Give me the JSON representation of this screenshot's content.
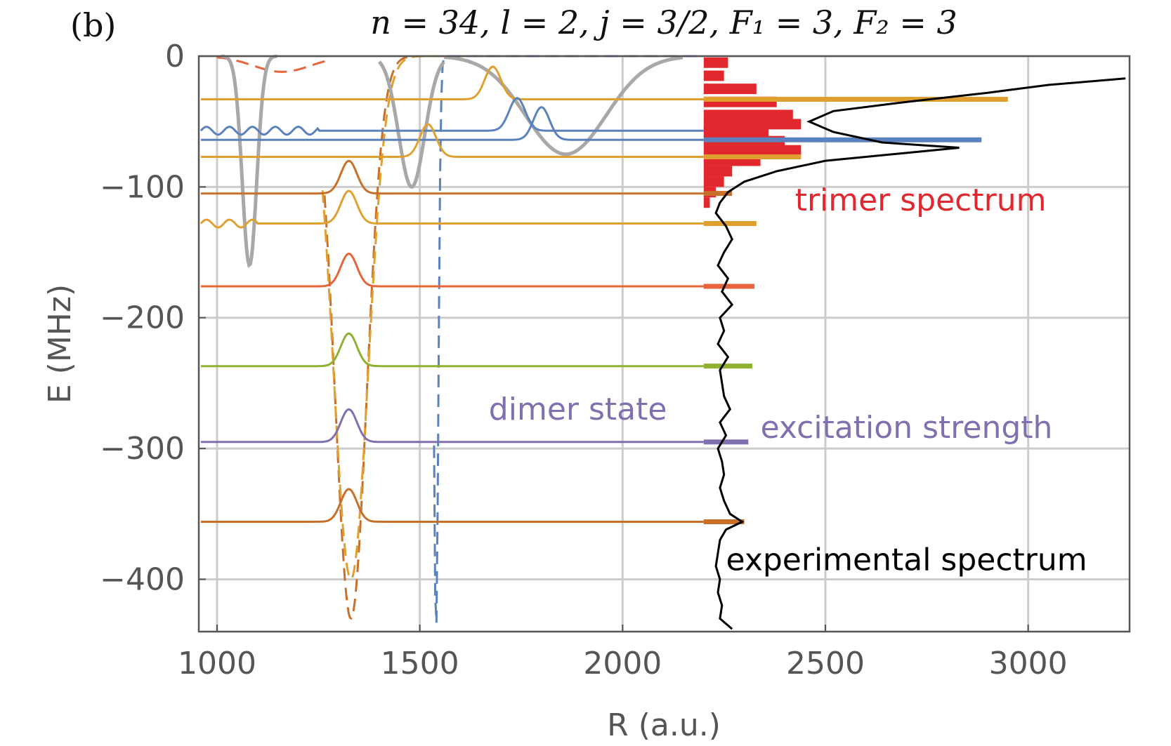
{
  "chart_data": {
    "type": "line",
    "panel_label": "(b)",
    "title": "n = 34, l = 2, j = 3/2, F₁ = 3, F₂ = 3",
    "xlabel": "R (a.u.)",
    "ylabel": "E (MHz)",
    "xlim": [
      955,
      3250
    ],
    "ylim": [
      -440,
      0
    ],
    "xticks": [
      1000,
      1500,
      2000,
      2500,
      3000
    ],
    "yticks": [
      0,
      -100,
      -200,
      -300,
      -400
    ],
    "grid": true,
    "colors": {
      "orange": "#E0A030",
      "blue": "#5B82BD",
      "brown": "#C8702A",
      "red_orange": "#E8643A",
      "green": "#8FB030",
      "purple": "#8070B0",
      "trimer": "#E2282E",
      "experiment": "#000000",
      "gray": "#A8A8A8"
    },
    "annotations": [
      {
        "text": "trimer spectrum",
        "x": 2425,
        "y": -118,
        "color": "#E2282E"
      },
      {
        "text": "dimer state",
        "x": 1670,
        "y": -278,
        "color": "#8070B0"
      },
      {
        "text": "excitation strength",
        "x": 2340,
        "y": -292,
        "color": "#8070B0"
      },
      {
        "text": "experimental spectrum",
        "x": 2255,
        "y": -393,
        "color": "#000000"
      }
    ],
    "bound_states": [
      {
        "energy": -33,
        "color": "orange",
        "x_start": 960,
        "x_end": 2200,
        "well_center": 1680,
        "strength": 2950
      },
      {
        "energy": -57,
        "color": "blue",
        "x_start": 960,
        "x_end": 2200,
        "well_center": 1740,
        "strength": 2200,
        "wiggly_until": 1250
      },
      {
        "energy": -64,
        "color": "blue",
        "x_start": 960,
        "x_end": 2200,
        "well_center": 1800,
        "strength": 2885
      },
      {
        "energy": -77,
        "color": "orange",
        "x_start": 960,
        "x_end": 2200,
        "well_center": 1520,
        "strength": 2440
      },
      {
        "energy": -105,
        "color": "brown",
        "x_start": 960,
        "x_end": 2200,
        "well_center": 1325,
        "strength": 2270
      },
      {
        "energy": -128,
        "color": "orange",
        "x_start": 960,
        "x_end": 2200,
        "well_center": 1325,
        "strength": 2330,
        "wiggly_until": 1100
      },
      {
        "energy": -176,
        "color": "red_orange",
        "x_start": 960,
        "x_end": 2200,
        "well_center": 1325,
        "strength": 2325
      },
      {
        "energy": -237,
        "color": "green",
        "x_start": 960,
        "x_end": 2200,
        "well_center": 1325,
        "strength": 2320
      },
      {
        "energy": -295,
        "color": "purple",
        "x_start": 960,
        "x_end": 2200,
        "well_center": 1325,
        "strength": 2310
      },
      {
        "energy": -356,
        "color": "brown",
        "x_start": 960,
        "x_end": 2200,
        "well_center": 1325,
        "strength": 2300
      }
    ],
    "potential_curves": [
      {
        "color": "brown",
        "dashed": true,
        "min_energy": -430,
        "center": 1330,
        "width": 55,
        "x_range": [
          1265,
          1470
        ]
      },
      {
        "color": "orange",
        "dashed": true,
        "min_energy": -400,
        "center": 1330,
        "width": 60,
        "x_range": [
          1260,
          1700
        ]
      },
      {
        "color": "blue",
        "dashed": true,
        "min_energy": -440,
        "center": 1540,
        "width": 8,
        "x_range": [
          1535,
          2200
        ]
      },
      {
        "color": "red_orange",
        "dashed": true,
        "min_energy": -12,
        "center": 1160,
        "width": 100,
        "x_range": [
          1000,
          1280
        ]
      },
      {
        "color": "gray",
        "dashed": false,
        "min_energy": -160,
        "center": 1080,
        "width": 25,
        "x_range": [
          1010,
          1150
        ]
      },
      {
        "color": "gray",
        "dashed": false,
        "min_energy": -100,
        "center": 1480,
        "width": 45,
        "x_range": [
          1400,
          1560
        ]
      },
      {
        "color": "gray",
        "dashed": false,
        "min_energy": -75,
        "center": 1860,
        "width": 140,
        "x_range": [
          1560,
          2150
        ]
      }
    ],
    "trimer_histogram": {
      "x_start": 2200,
      "bins": [
        {
          "energy": -5,
          "value": 2260
        },
        {
          "energy": -15,
          "value": 2250
        },
        {
          "energy": -25,
          "value": 2330
        },
        {
          "energy": -35,
          "value": 2380
        },
        {
          "energy": -45,
          "value": 2420
        },
        {
          "energy": -52,
          "value": 2440
        },
        {
          "energy": -58,
          "value": 2360
        },
        {
          "energy": -65,
          "value": 2400
        },
        {
          "energy": -72,
          "value": 2440
        },
        {
          "energy": -80,
          "value": 2340
        },
        {
          "energy": -88,
          "value": 2270
        },
        {
          "energy": -96,
          "value": 2250
        },
        {
          "energy": -104,
          "value": 2230
        },
        {
          "energy": -112,
          "value": 2215
        }
      ]
    },
    "experimental_spectrum": {
      "energies": [
        -17,
        -22,
        -28,
        -35,
        -42,
        -50,
        -58,
        -66,
        -70,
        -74,
        -80,
        -88,
        -96,
        -104,
        -112,
        -120,
        -130,
        -140,
        -150,
        -160,
        -170,
        -180,
        -190,
        -200,
        -210,
        -220,
        -230,
        -240,
        -250,
        -260,
        -270,
        -280,
        -290,
        -300,
        -310,
        -320,
        -330,
        -340,
        -350,
        -356,
        -362,
        -370,
        -380,
        -390,
        -400,
        -410,
        -420,
        -430,
        -438
      ],
      "values": [
        3240,
        3050,
        2900,
        2700,
        2520,
        2460,
        2520,
        2640,
        2830,
        2700,
        2500,
        2380,
        2300,
        2260,
        2240,
        2230,
        2255,
        2270,
        2250,
        2235,
        2260,
        2245,
        2270,
        2240,
        2250,
        2235,
        2260,
        2240,
        2245,
        2250,
        2265,
        2240,
        2255,
        2235,
        2245,
        2250,
        2240,
        2250,
        2265,
        2295,
        2255,
        2240,
        2235,
        2230,
        2240,
        2235,
        2245,
        2240,
        2270
      ]
    }
  }
}
